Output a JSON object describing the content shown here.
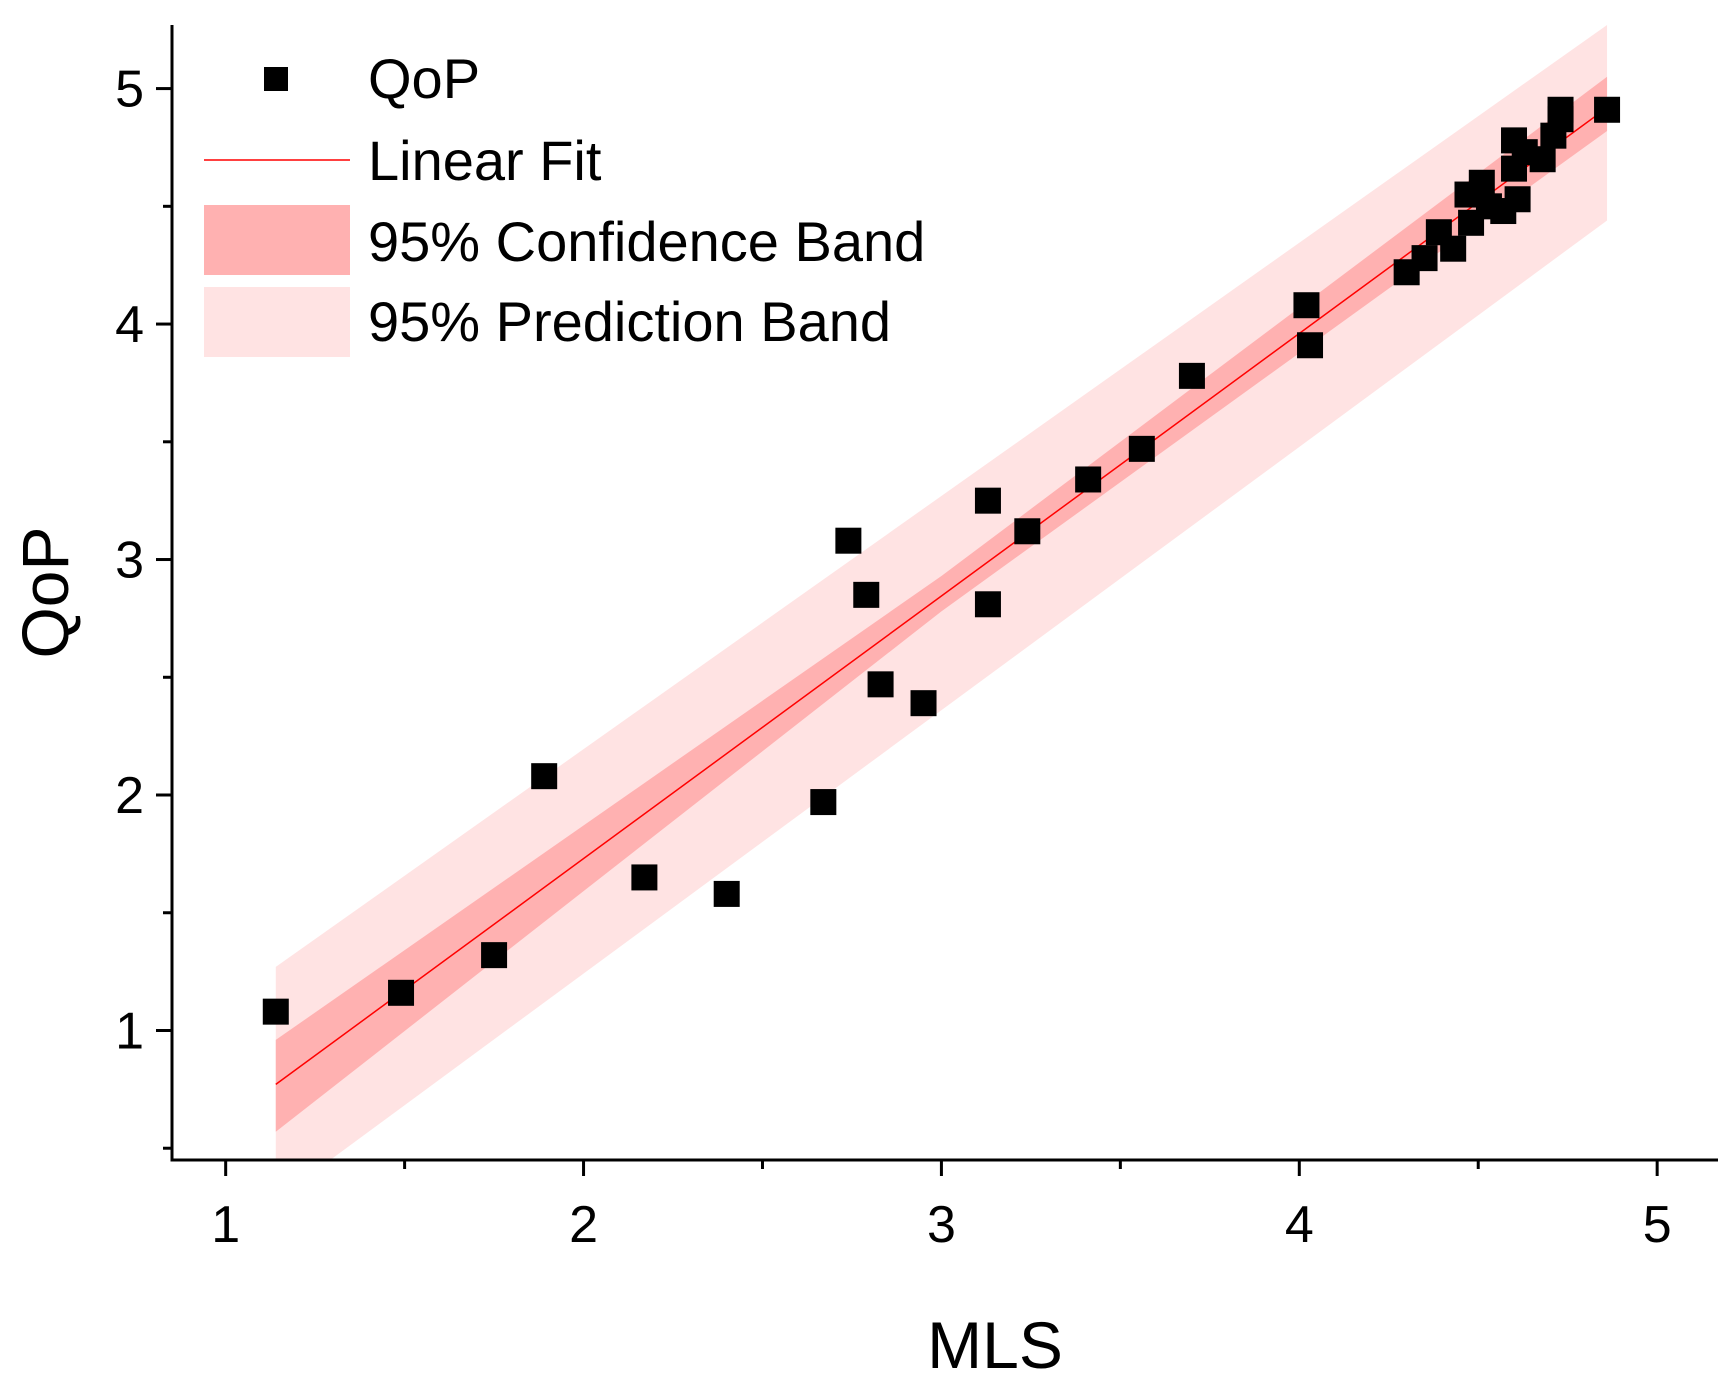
{
  "chart_data": {
    "type": "scatter",
    "title": "",
    "xlabel": "MLS",
    "ylabel": "QoP",
    "xlim": [
      0.85,
      5.17
    ],
    "ylim": [
      0.45,
      5.27
    ],
    "x_ticks": [
      1,
      2,
      3,
      4,
      5
    ],
    "y_ticks": [
      1,
      2,
      3,
      4,
      5
    ],
    "grid": false,
    "legend_position": "top-left",
    "colors": {
      "points": "#000000",
      "fit_line": "#ff0000",
      "confidence_band": "#ffb1b1",
      "prediction_band": "#ffe3e3"
    },
    "legend": [
      {
        "key": "points",
        "label": "QoP"
      },
      {
        "key": "fit",
        "label": "Linear Fit"
      },
      {
        "key": "confidence",
        "label": "95% Confidence Band"
      },
      {
        "key": "prediction",
        "label": "95% Prediction Band"
      }
    ],
    "fit": {
      "slope": 1.115,
      "intercept": -0.5,
      "x_range": [
        1.14,
        4.86
      ]
    },
    "confidence_band": {
      "x": [
        1.14,
        3.0,
        4.86
      ],
      "lower": [
        0.57,
        2.78,
        4.82
      ],
      "upper": [
        0.96,
        2.93,
        5.05
      ]
    },
    "prediction_band": {
      "x": [
        1.14,
        4.86
      ],
      "lower": [
        0.28,
        4.44
      ],
      "upper": [
        1.27,
        5.27
      ]
    },
    "series": [
      {
        "name": "QoP",
        "points": [
          [
            1.14,
            1.08
          ],
          [
            1.49,
            1.16
          ],
          [
            1.75,
            1.32
          ],
          [
            1.89,
            2.08
          ],
          [
            2.17,
            1.65
          ],
          [
            2.4,
            1.58
          ],
          [
            2.67,
            1.97
          ],
          [
            2.74,
            3.08
          ],
          [
            2.79,
            2.85
          ],
          [
            2.83,
            2.47
          ],
          [
            2.95,
            2.39
          ],
          [
            3.13,
            3.25
          ],
          [
            3.13,
            2.81
          ],
          [
            3.24,
            3.12
          ],
          [
            3.41,
            3.34
          ],
          [
            3.56,
            3.47
          ],
          [
            3.7,
            3.78
          ],
          [
            4.02,
            4.08
          ],
          [
            4.03,
            3.91
          ],
          [
            4.3,
            4.22
          ],
          [
            4.35,
            4.28
          ],
          [
            4.39,
            4.39
          ],
          [
            4.43,
            4.32
          ],
          [
            4.47,
            4.55
          ],
          [
            4.48,
            4.43
          ],
          [
            4.51,
            4.6
          ],
          [
            4.53,
            4.5
          ],
          [
            4.57,
            4.48
          ],
          [
            4.6,
            4.78
          ],
          [
            4.6,
            4.66
          ],
          [
            4.61,
            4.53
          ],
          [
            4.63,
            4.73
          ],
          [
            4.68,
            4.7
          ],
          [
            4.71,
            4.8
          ],
          [
            4.73,
            4.87
          ],
          [
            4.73,
            4.91
          ],
          [
            4.86,
            4.91
          ]
        ]
      }
    ]
  }
}
